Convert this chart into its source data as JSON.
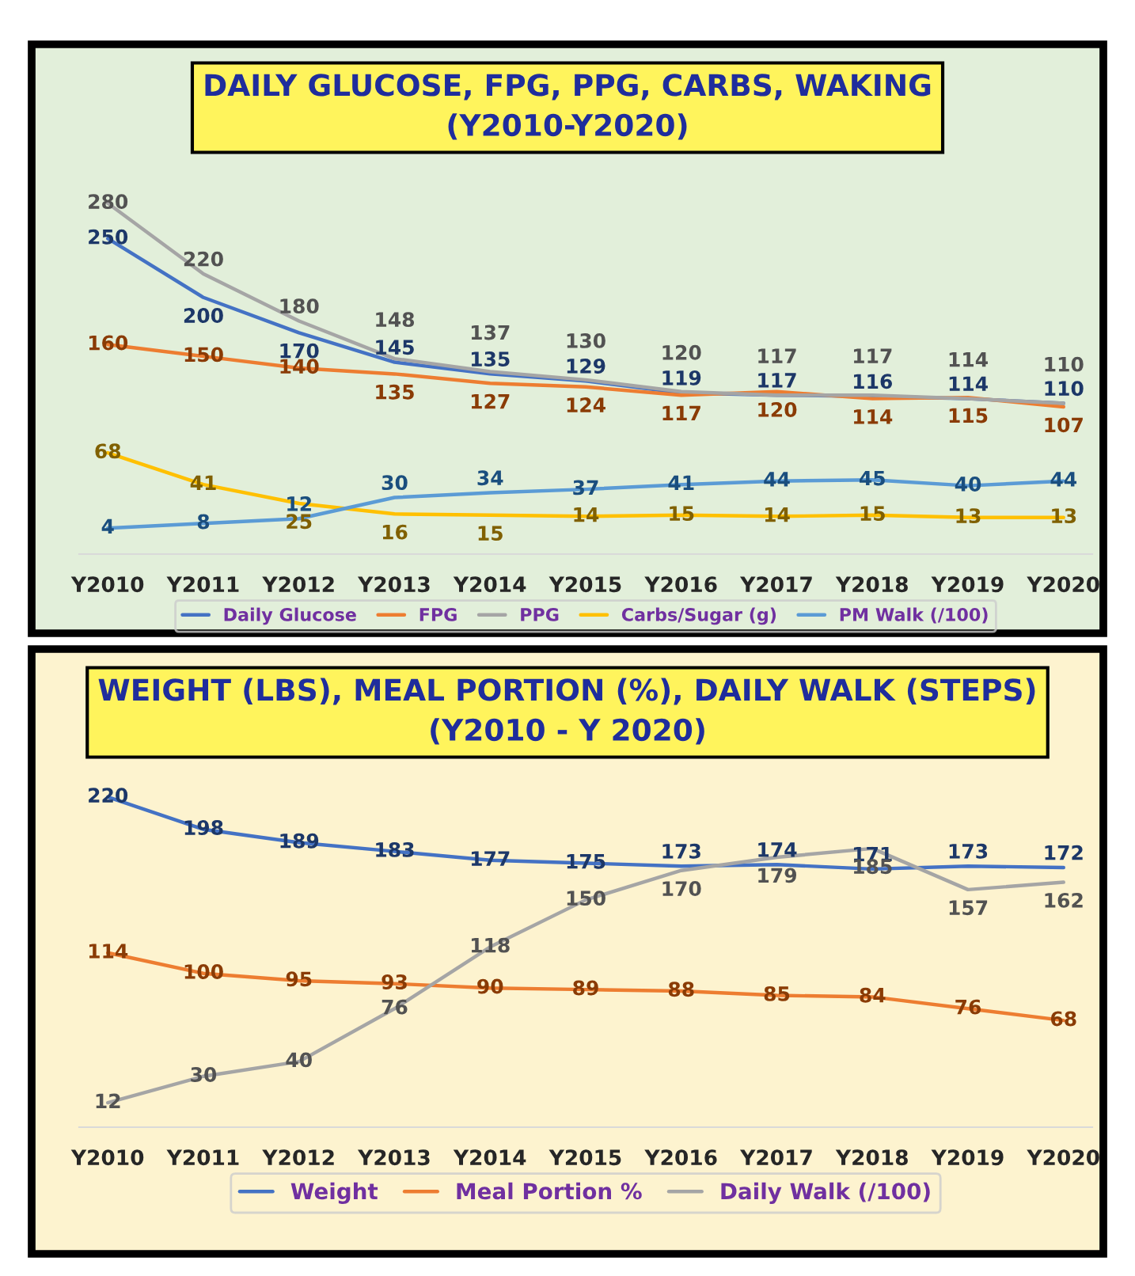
{
  "chart_data": [
    {
      "type": "line",
      "title": "DAILY GLUCOSE, FPG, PPG, CARBS, WAKING\n(Y2010-Y2020)",
      "categories": [
        "Y2010",
        "Y2011",
        "Y2012",
        "Y2013",
        "Y2014",
        "Y2015",
        "Y2016",
        "Y2017",
        "Y2018",
        "Y2019",
        "Y2020"
      ],
      "series": [
        {
          "name": "Daily Glucose",
          "color": "#4472c4",
          "values": [
            250,
            200,
            170,
            145,
            135,
            129,
            119,
            117,
            116,
            114,
            110
          ]
        },
        {
          "name": "FPG",
          "color": "#ed7d31",
          "values": [
            160,
            150,
            140,
            135,
            127,
            124,
            117,
            120,
            114,
            115,
            107
          ]
        },
        {
          "name": "PPG",
          "color": "#a5a5a5",
          "values": [
            280,
            220,
            180,
            148,
            137,
            130,
            120,
            117,
            117,
            114,
            110
          ]
        },
        {
          "name": "Carbs/Sugar (g)",
          "color": "#ffc000",
          "values": [
            68,
            41,
            25,
            16,
            15,
            14,
            15,
            14,
            15,
            13,
            13
          ]
        },
        {
          "name": "PM Walk (/100)",
          "color": "#5b9bd5",
          "values": [
            4,
            8,
            12,
            30,
            34,
            37,
            41,
            44,
            45,
            40,
            44
          ]
        }
      ],
      "tick_labels": "x",
      "data_labels": true,
      "legend": "bottom",
      "grid": false,
      "marker": "none",
      "line_style": "solid"
    },
    {
      "type": "line",
      "title": "WEIGHT (LBS), MEAL PORTION (%), DAILY WALK (STEPS)\n(Y2010 - Y 2020)",
      "categories": [
        "Y2010",
        "Y2011",
        "Y2012",
        "Y2013",
        "Y2014",
        "Y2015",
        "Y2016",
        "Y2017",
        "Y2018",
        "Y2019",
        "Y2020"
      ],
      "series": [
        {
          "name": "Weight",
          "color": "#4472c4",
          "values": [
            220,
            198,
            189,
            183,
            177,
            175,
            173,
            174,
            171,
            173,
            172
          ]
        },
        {
          "name": "Meal Portion %",
          "color": "#ed7d31",
          "values": [
            114,
            100,
            95,
            93,
            90,
            89,
            88,
            85,
            84,
            76,
            68
          ]
        },
        {
          "name": "Daily Walk (/100)",
          "color": "#a5a5a5",
          "values": [
            12,
            30,
            40,
            76,
            118,
            150,
            170,
            179,
            185,
            157,
            162
          ]
        }
      ],
      "tick_labels": "x",
      "data_labels": true,
      "legend": "bottom",
      "grid": false,
      "marker": "none",
      "line_style": "solid"
    }
  ]
}
